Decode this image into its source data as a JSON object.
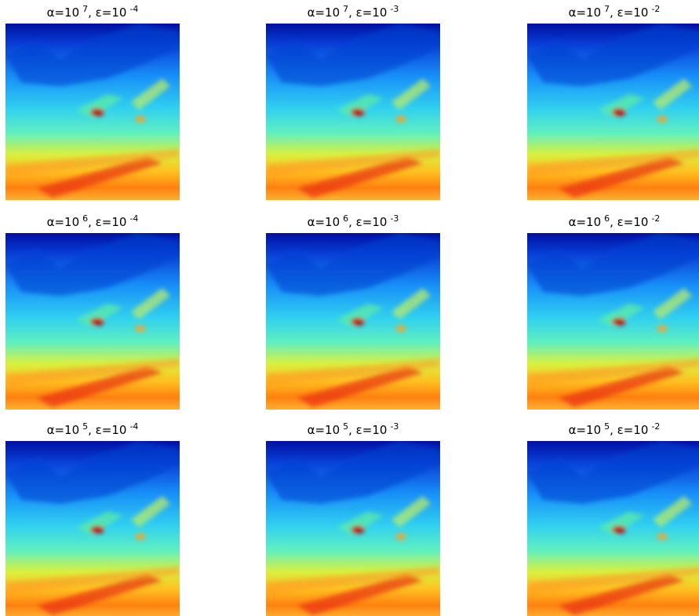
{
  "panels": [
    {
      "title": [
        "α=10",
        "7",
        ", ε=10",
        "-4"
      ]
    },
    {
      "title": [
        "α=10",
        "7",
        ", ε=10",
        "-3"
      ]
    },
    {
      "title": [
        "α=10",
        "7",
        ", ε=10",
        "-2"
      ]
    },
    {
      "title": [
        "α=10",
        "6",
        ", ε=10",
        "-4"
      ]
    },
    {
      "title": [
        "α=10",
        "6",
        ", ε=10",
        "-3"
      ]
    },
    {
      "title": [
        "α=10",
        "6",
        ", ε=10",
        "-2"
      ]
    },
    {
      "title": [
        "α=10",
        "5",
        ", ε=10",
        "-4"
      ]
    },
    {
      "title": [
        "α=10",
        "5",
        ", ε=10",
        "-3"
      ]
    },
    {
      "title": [
        "α=10",
        "5",
        ", ε=10",
        "-2"
      ]
    }
  ]
}
